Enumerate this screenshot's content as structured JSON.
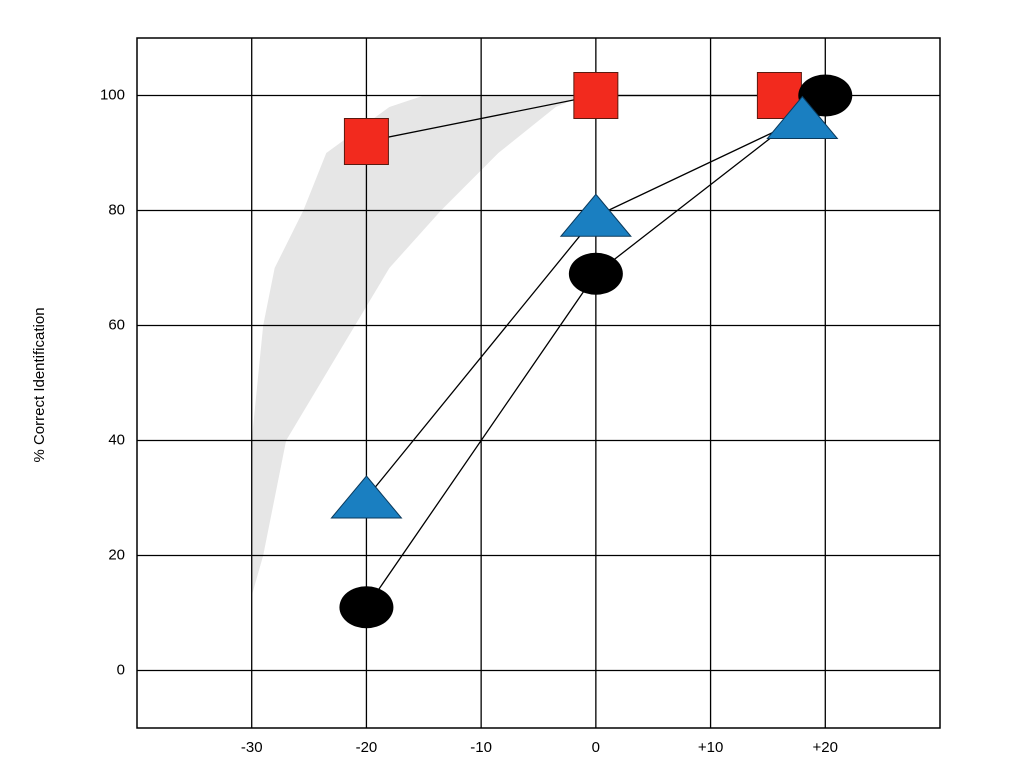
{
  "chart_data": {
    "type": "scatter",
    "y_label": "% Correct Identification",
    "xlim": [
      -40,
      30
    ],
    "ylim": [
      -10,
      110
    ],
    "xticks": [
      -30,
      -20,
      -10,
      0,
      {
        "value": 10,
        "label": "+10"
      },
      {
        "value": 20,
        "label": "+20"
      }
    ],
    "yticks": [
      0,
      20,
      40,
      60,
      80,
      100
    ],
    "grid": true,
    "shaded_region": {
      "color": "#e6e6e6",
      "y": [
        13,
        20,
        40,
        60,
        70,
        80,
        90,
        98,
        100
      ],
      "x_left": [
        -30,
        -30,
        -30,
        -29,
        -28,
        -25.5,
        -23.5,
        -18,
        -15
      ],
      "x_right": [
        -30,
        -29,
        -27,
        -21,
        -18,
        -13.5,
        -8.5,
        -3.5,
        -1
      ]
    },
    "series": [
      {
        "marker": "square",
        "color": "#f22a1e",
        "x": [
          -20,
          0,
          16
        ],
        "values": [
          92,
          100,
          100
        ]
      },
      {
        "marker": "circle",
        "color": "#000000",
        "x": [
          -20,
          0,
          20
        ],
        "values": [
          11,
          69,
          100
        ]
      },
      {
        "marker": "triangle",
        "color": "#1a7fc1",
        "x": [
          -20,
          0,
          18
        ],
        "values": [
          30,
          79,
          96
        ]
      }
    ]
  }
}
